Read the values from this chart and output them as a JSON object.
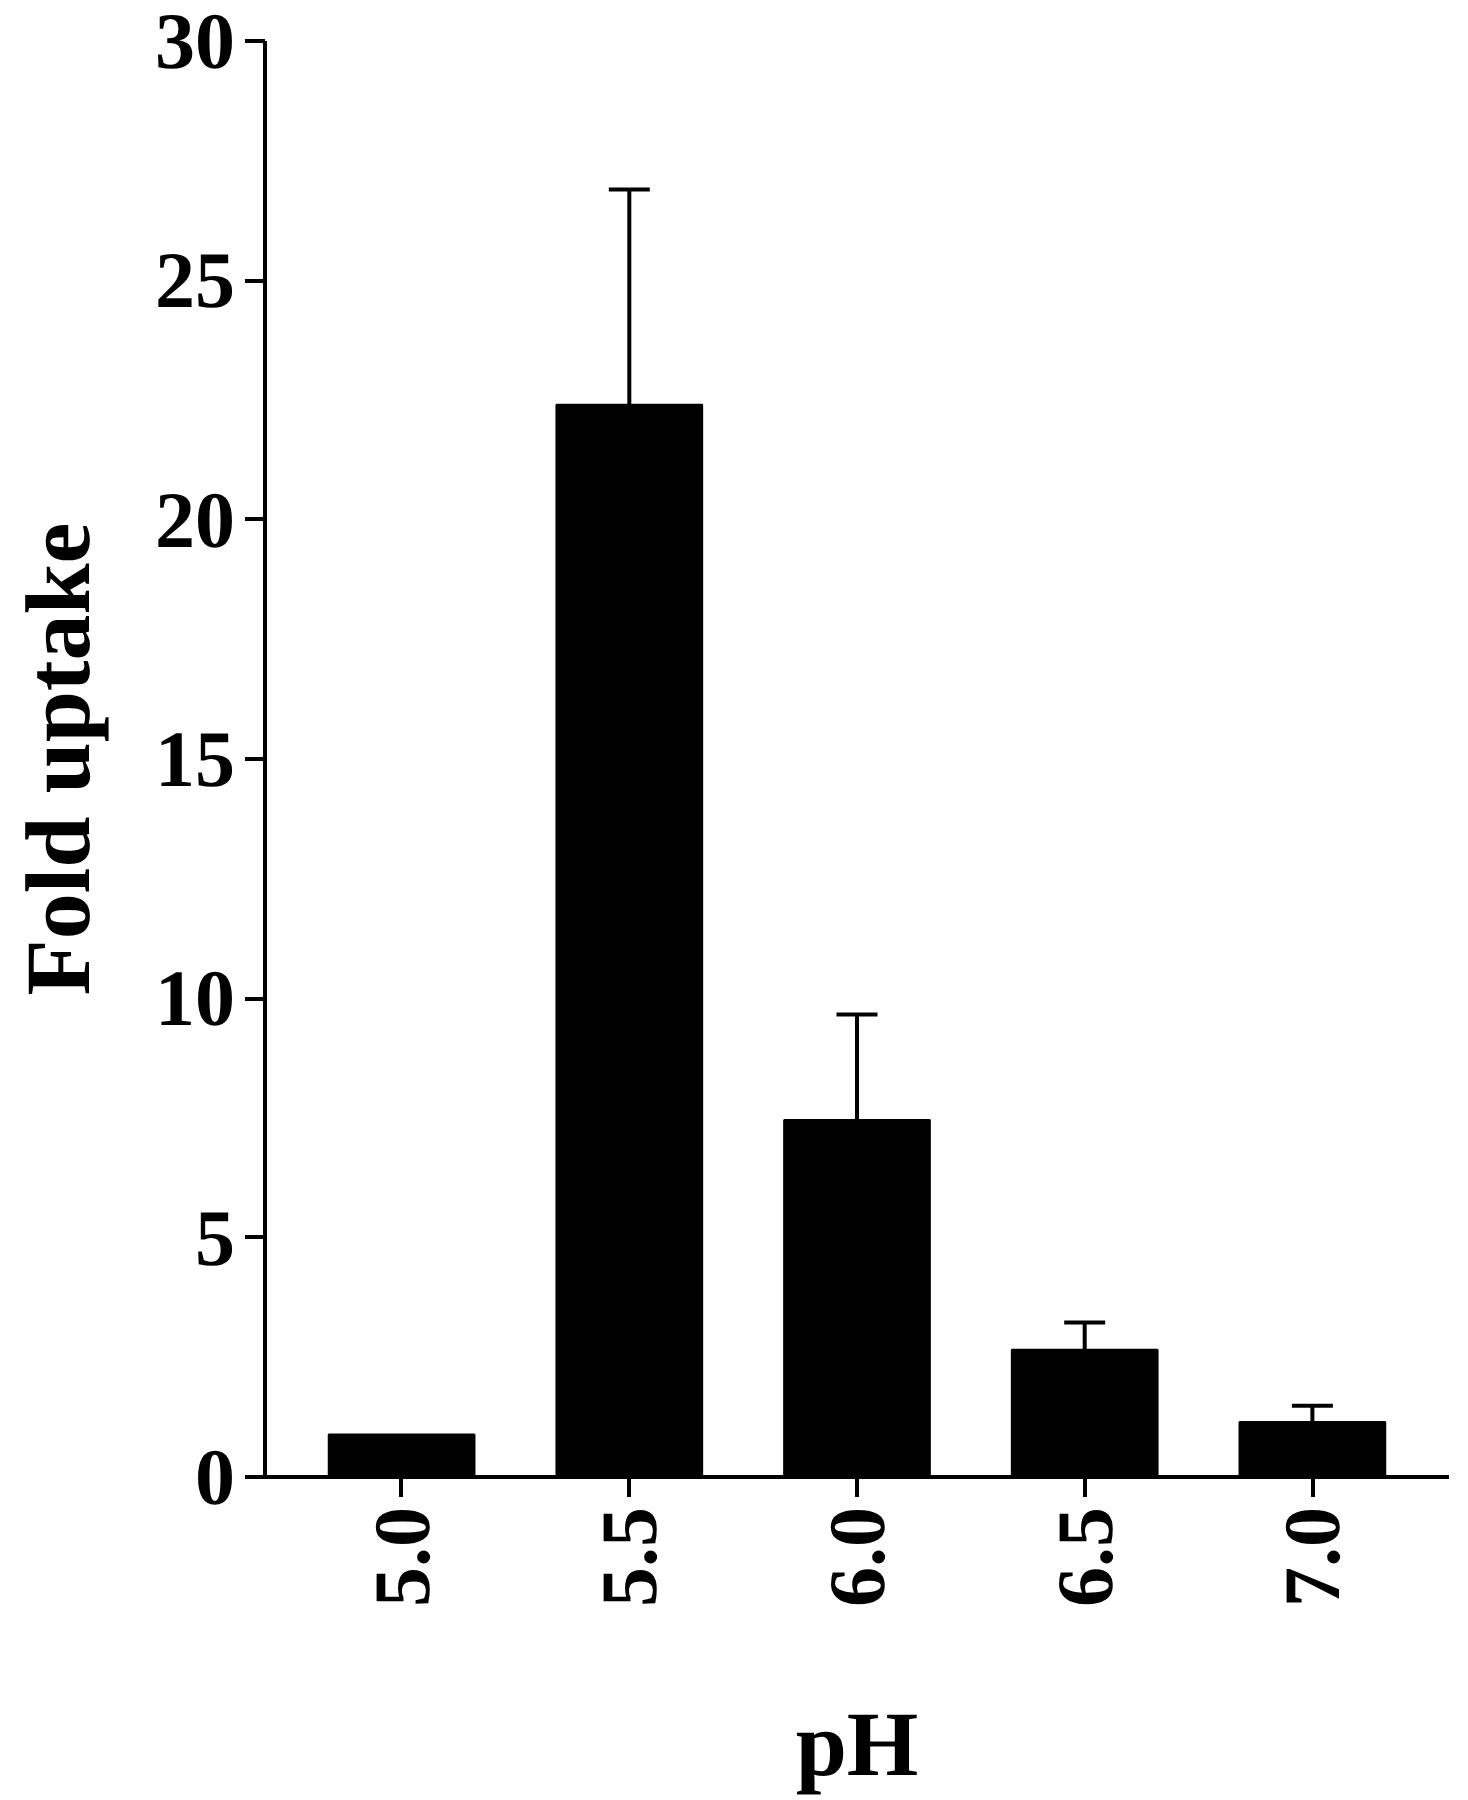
{
  "chart_data": {
    "type": "bar",
    "xlabel": "pH",
    "ylabel": "Fold uptake",
    "categories": [
      "5.0",
      "5.5",
      "6.0",
      "6.5",
      "7.0"
    ],
    "values": [
      0.89,
      22.4,
      7.46,
      2.66,
      1.15
    ],
    "errors": [
      null,
      [
        22.4,
        26.9
      ],
      [
        7.46,
        9.66
      ],
      [
        2.66,
        3.23
      ],
      [
        1.15,
        1.49
      ]
    ],
    "color": "#000000",
    "ylim": [
      0,
      30
    ],
    "yticks": [
      0,
      5,
      10,
      15,
      20,
      25,
      30
    ],
    "grid": false
  }
}
